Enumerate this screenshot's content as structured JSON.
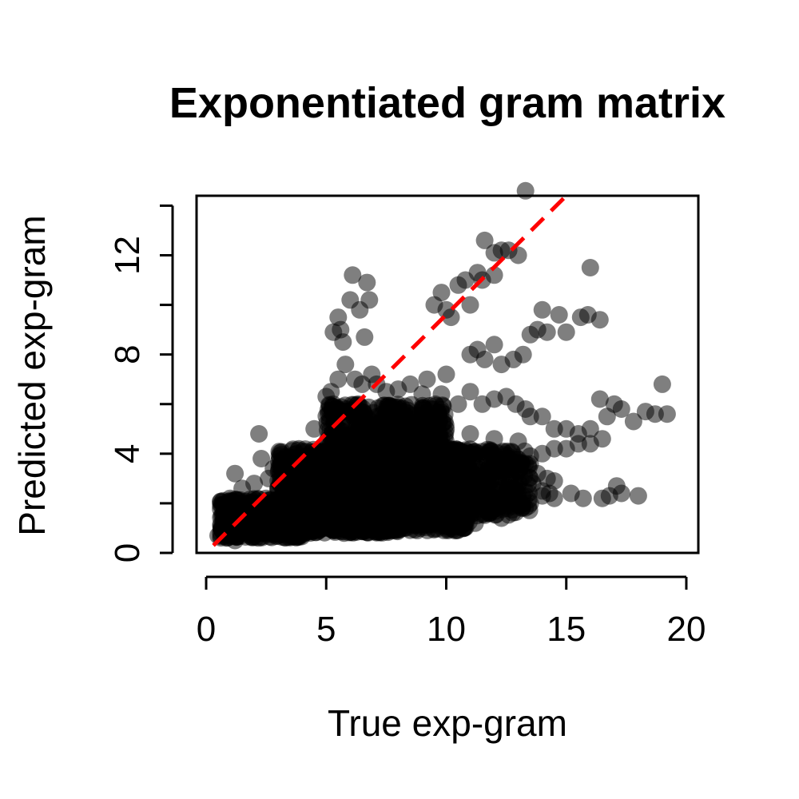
{
  "chart_data": {
    "type": "scatter",
    "title": "Exponentiated gram matrix",
    "xlabel": "True exp-gram",
    "ylabel": "Predicted exp-gram",
    "xlim": [
      -0.4,
      20.5
    ],
    "ylim": [
      0,
      14.4
    ],
    "xticks": [
      0,
      5,
      10,
      15,
      20
    ],
    "yticks": [
      0,
      2,
      4,
      6,
      8,
      10,
      12,
      14
    ],
    "ytick_labels": [
      "0",
      "",
      "4",
      "",
      "8",
      "",
      "12",
      ""
    ],
    "grid": false,
    "point_color": "#000000",
    "point_alpha": 0.5,
    "reference_line": {
      "type": "identity",
      "slope": 1,
      "intercept": 0,
      "color": "#ff0000",
      "style": "dashed"
    },
    "points": [
      [
        0.5,
        0.7
      ],
      [
        0.8,
        0.9
      ],
      [
        1.0,
        1.0
      ],
      [
        1.2,
        0.5
      ],
      [
        1.3,
        0.9
      ],
      [
        1.5,
        1.2
      ],
      [
        1.8,
        1.4
      ],
      [
        2.1,
        1.6
      ],
      [
        2.2,
        4.8
      ],
      [
        2.3,
        3.8
      ],
      [
        2.8,
        3.4
      ],
      [
        2.5,
        2.2
      ],
      [
        3.0,
        2.6
      ],
      [
        3.5,
        3.0
      ],
      [
        3.8,
        3.4
      ],
      [
        1.2,
        3.2
      ],
      [
        1.0,
        2.2
      ],
      [
        2.0,
        2.8
      ],
      [
        1.5,
        2.6
      ],
      [
        2.6,
        3.0
      ],
      [
        4.5,
        5.0
      ],
      [
        5.0,
        6.3
      ],
      [
        5.2,
        6.5
      ],
      [
        5.3,
        8.9
      ],
      [
        5.5,
        9.5
      ],
      [
        5.6,
        9.0
      ],
      [
        5.7,
        8.5
      ],
      [
        6.0,
        10.2
      ],
      [
        6.1,
        11.2
      ],
      [
        6.4,
        9.8
      ],
      [
        6.6,
        8.7
      ],
      [
        6.7,
        10.9
      ],
      [
        6.8,
        10.2
      ],
      [
        5.5,
        7.0
      ],
      [
        5.8,
        7.6
      ],
      [
        6.2,
        7.0
      ],
      [
        6.5,
        6.8
      ],
      [
        6.9,
        7.2
      ],
      [
        7.1,
        6.8
      ],
      [
        7.5,
        6.5
      ],
      [
        8.0,
        6.6
      ],
      [
        8.5,
        6.8
      ],
      [
        9.0,
        6.4
      ],
      [
        9.5,
        10.0
      ],
      [
        9.8,
        10.5
      ],
      [
        10.0,
        9.8
      ],
      [
        10.2,
        9.5
      ],
      [
        10.5,
        10.8
      ],
      [
        10.8,
        11.0
      ],
      [
        11.0,
        10.0
      ],
      [
        11.3,
        11.3
      ],
      [
        11.6,
        12.6
      ],
      [
        12.0,
        12.1
      ],
      [
        12.3,
        12.2
      ],
      [
        12.6,
        12.2
      ],
      [
        13.0,
        12.0
      ],
      [
        13.3,
        14.6
      ],
      [
        11.5,
        11.0
      ],
      [
        12.0,
        11.2
      ],
      [
        9.2,
        7.0
      ],
      [
        9.8,
        6.4
      ],
      [
        10.0,
        7.2
      ],
      [
        10.5,
        6.0
      ],
      [
        11.0,
        8.0
      ],
      [
        11.3,
        8.2
      ],
      [
        11.6,
        7.8
      ],
      [
        12.0,
        8.4
      ],
      [
        12.3,
        7.6
      ],
      [
        12.8,
        7.8
      ],
      [
        13.2,
        8.0
      ],
      [
        13.5,
        8.8
      ],
      [
        13.8,
        9.0
      ],
      [
        14.0,
        9.8
      ],
      [
        14.2,
        8.9
      ],
      [
        14.7,
        9.6
      ],
      [
        15.0,
        8.9
      ],
      [
        15.6,
        9.5
      ],
      [
        15.9,
        9.6
      ],
      [
        16.0,
        11.5
      ],
      [
        16.4,
        9.4
      ],
      [
        11.0,
        6.5
      ],
      [
        11.5,
        6.0
      ],
      [
        12.0,
        6.2
      ],
      [
        12.5,
        6.3
      ],
      [
        12.9,
        6.0
      ],
      [
        13.3,
        5.8
      ],
      [
        13.5,
        5.5
      ],
      [
        14.0,
        5.5
      ],
      [
        14.5,
        5.0
      ],
      [
        15.0,
        5.0
      ],
      [
        15.5,
        4.8
      ],
      [
        16.0,
        5.0
      ],
      [
        16.4,
        6.2
      ],
      [
        16.7,
        5.5
      ],
      [
        17.0,
        6.0
      ],
      [
        17.3,
        5.8
      ],
      [
        17.8,
        5.3
      ],
      [
        18.3,
        5.7
      ],
      [
        18.7,
        5.6
      ],
      [
        19.0,
        6.8
      ],
      [
        19.2,
        5.6
      ],
      [
        11.0,
        4.8
      ],
      [
        12.0,
        4.6
      ],
      [
        13.0,
        4.5
      ],
      [
        13.5,
        3.9
      ],
      [
        14.0,
        4.0
      ],
      [
        14.5,
        4.2
      ],
      [
        15.0,
        4.2
      ],
      [
        15.5,
        4.4
      ],
      [
        16.0,
        4.4
      ],
      [
        16.5,
        4.6
      ],
      [
        13.8,
        3.2
      ],
      [
        14.2,
        3.0
      ],
      [
        14.5,
        2.9
      ],
      [
        14.3,
        2.4
      ],
      [
        14.0,
        2.5
      ],
      [
        13.6,
        2.8
      ],
      [
        12.0,
        2.2
      ],
      [
        12.5,
        2.0
      ],
      [
        13.0,
        2.2
      ],
      [
        13.5,
        2.0
      ],
      [
        14.0,
        2.3
      ],
      [
        14.5,
        2.2
      ],
      [
        15.2,
        2.4
      ],
      [
        15.7,
        2.2
      ],
      [
        16.5,
        2.2
      ],
      [
        16.8,
        2.3
      ],
      [
        17.1,
        2.7
      ],
      [
        17.3,
        2.4
      ],
      [
        18.0,
        2.3
      ],
      [
        11.2,
        1.2
      ],
      [
        11.8,
        1.6
      ],
      [
        12.3,
        1.4
      ],
      [
        10.8,
        1.4
      ],
      [
        10.5,
        1.3
      ]
    ],
    "dense_clusters": [
      {
        "xmin": 0.6,
        "xmax": 4.0,
        "ymin": 0.6,
        "ymax": 2.2,
        "n": 520
      },
      {
        "xmin": 3.0,
        "xmax": 11.0,
        "ymin": 0.9,
        "ymax": 4.2,
        "n": 1500
      },
      {
        "xmin": 5.0,
        "xmax": 10.0,
        "ymin": 2.8,
        "ymax": 6.0,
        "n": 650
      },
      {
        "xmin": 8.0,
        "xmax": 13.5,
        "ymin": 1.5,
        "ymax": 4.2,
        "n": 420
      },
      {
        "xmin": 4.0,
        "xmax": 8.0,
        "ymin": 0.8,
        "ymax": 1.4,
        "n": 300
      }
    ]
  }
}
